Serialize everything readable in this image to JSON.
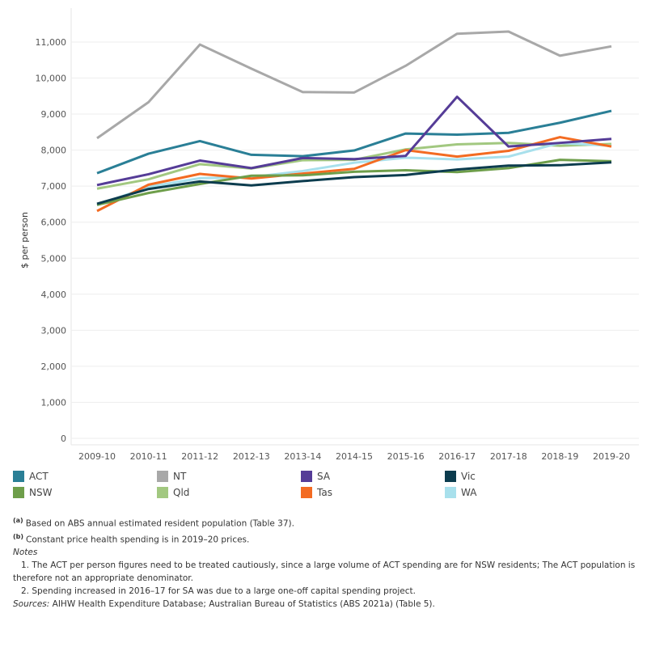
{
  "chart_data": {
    "type": "line",
    "title": "",
    "xlabel": "",
    "ylabel": "$ per person",
    "ylim": [
      0,
      11500
    ],
    "yticks": [
      0,
      1000,
      2000,
      3000,
      4000,
      5000,
      6000,
      7000,
      8000,
      9000,
      10000,
      11000
    ],
    "ytick_labels": [
      "0",
      "1,000",
      "2,000",
      "3,000",
      "4,000",
      "5,000",
      "6,000",
      "7,000",
      "8,000",
      "9,000",
      "10,000",
      "11,000"
    ],
    "grid": true,
    "legend_placement": "bottom",
    "categories": [
      "2009-10",
      "2010-11",
      "2011-12",
      "2012-13",
      "2013-14",
      "2014-15",
      "2015-16",
      "2016-17",
      "2017-18",
      "2018-19",
      "2019-20"
    ],
    "series": [
      {
        "name": "ACT",
        "color": "#2a7f96",
        "values": [
          7360,
          7900,
          8250,
          7870,
          7830,
          7990,
          8460,
          8430,
          8480,
          8760,
          9090
        ]
      },
      {
        "name": "NT",
        "color": "#a8a8a8",
        "values": [
          8330,
          9330,
          10930,
          10260,
          9610,
          9600,
          10340,
          11230,
          11290,
          10620,
          10880
        ]
      },
      {
        "name": "SA",
        "color": "#553c97",
        "values": [
          7030,
          7330,
          7710,
          7500,
          7780,
          7750,
          7840,
          9480,
          8100,
          8200,
          8310
        ]
      },
      {
        "name": "Vic",
        "color": "#0c3c4e",
        "values": [
          6510,
          6920,
          7130,
          7020,
          7140,
          7250,
          7310,
          7460,
          7570,
          7580,
          7660
        ]
      },
      {
        "name": "NSW",
        "color": "#6e9e4a",
        "values": [
          6480,
          6810,
          7060,
          7290,
          7300,
          7400,
          7440,
          7390,
          7500,
          7730,
          7690
        ]
      },
      {
        "name": "Qld",
        "color": "#a2c880",
        "values": [
          6930,
          7190,
          7610,
          7490,
          7720,
          7730,
          8020,
          8160,
          8200,
          8120,
          8170
        ]
      },
      {
        "name": "Tas",
        "color": "#f36b22",
        "values": [
          6310,
          7040,
          7340,
          7210,
          7350,
          7480,
          8000,
          7820,
          7980,
          8360,
          8100
        ]
      },
      {
        "name": "WA",
        "color": "#a8e0ec",
        "values": [
          6470,
          6980,
          7220,
          7250,
          7420,
          7650,
          7790,
          7740,
          7820,
          8200,
          8120
        ]
      }
    ]
  },
  "notes": {
    "a_marker": "(a)",
    "a": "Based on  ABS annual estimated resident population (Table 37).",
    "b_marker": "(b)",
    "b": "Constant price health spending is in 2019–20 prices.",
    "notes_label": "Notes",
    "n1": "1.  The ACT per person figures need to be treated cautiously, since a large volume of ACT spending are for NSW residents; The ACT population is",
    "n1b": "therefore not an appropriate denominator.",
    "n2": "2.  Spending increased in 2016–17 for SA was due to a large one-off capital spending project.",
    "sources_label": "Sources:",
    "sources": " AIHW Health Expenditure Database; Australian Bureau of Statistics (ABS 2021a) (Table 5)."
  }
}
